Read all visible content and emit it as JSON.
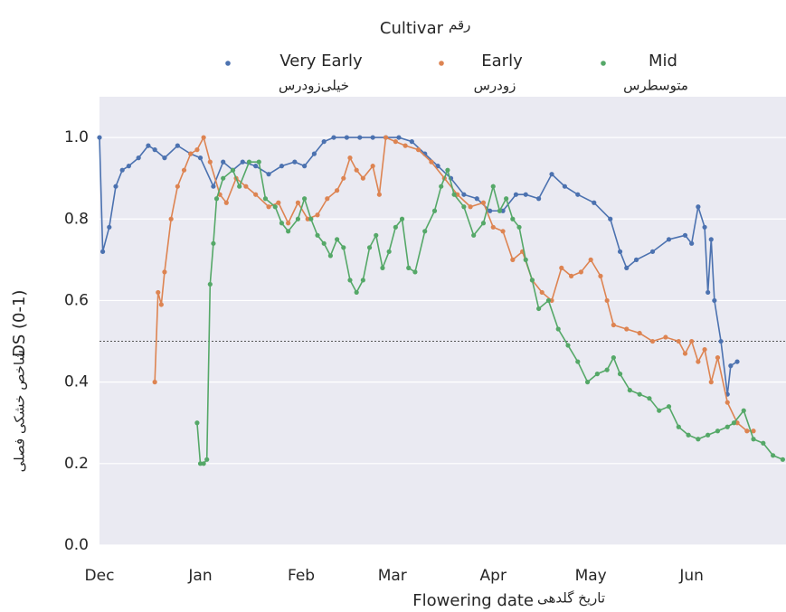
{
  "chart_data": {
    "type": "line",
    "legend_title": "Cultivar",
    "legend_title_fa": "رقم",
    "x_label": "Flowering date",
    "x_label_fa": "تاریخ گلدهی",
    "y_label": "DS (0-1)",
    "y_label_fa": "شاخص خشکی فصلی",
    "xlim": [
      0,
      211
    ],
    "ylim": [
      0,
      1.1
    ],
    "xticks": [
      {
        "value": 0,
        "label": "Dec"
      },
      {
        "value": 31,
        "label": "Jan"
      },
      {
        "value": 62,
        "label": "Feb"
      },
      {
        "value": 90,
        "label": "Mar"
      },
      {
        "value": 121,
        "label": "Apr"
      },
      {
        "value": 151,
        "label": "May"
      },
      {
        "value": 182,
        "label": "Jun"
      }
    ],
    "yticks": [
      {
        "value": 0,
        "label": "0.0"
      },
      0.2,
      0.4,
      0.6,
      0.8,
      {
        "value": 1,
        "label": "1.0"
      }
    ],
    "grid": true,
    "hline": 0.5,
    "series": [
      {
        "name": "Very Early",
        "name_fa": "خیلی‌زودرس",
        "color": "#4c72b0",
        "x": [
          0,
          1,
          3,
          5,
          7,
          9,
          12,
          15,
          17,
          20,
          24,
          28,
          31,
          35,
          38,
          41,
          44,
          48,
          52,
          56,
          60,
          63,
          66,
          69,
          72,
          76,
          80,
          84,
          88,
          92,
          96,
          100,
          104,
          108,
          112,
          116,
          120,
          124,
          128,
          131,
          135,
          139,
          143,
          147,
          152,
          157,
          160,
          162,
          165,
          170,
          175,
          180,
          182,
          184,
          186,
          187,
          188,
          189,
          191,
          193,
          194,
          196
        ],
        "values": [
          1.0,
          0.72,
          0.78,
          0.88,
          0.92,
          0.93,
          0.95,
          0.98,
          0.97,
          0.95,
          0.98,
          0.96,
          0.95,
          0.88,
          0.94,
          0.92,
          0.94,
          0.93,
          0.91,
          0.93,
          0.94,
          0.93,
          0.96,
          0.99,
          1.0,
          1.0,
          1.0,
          1.0,
          1.0,
          1.0,
          0.99,
          0.96,
          0.93,
          0.9,
          0.86,
          0.85,
          0.82,
          0.82,
          0.86,
          0.86,
          0.85,
          0.91,
          0.88,
          0.86,
          0.84,
          0.8,
          0.72,
          0.68,
          0.7,
          0.72,
          0.75,
          0.76,
          0.74,
          0.83,
          0.78,
          0.62,
          0.75,
          0.6,
          0.5,
          0.37,
          0.44,
          0.45
        ]
      },
      {
        "name": "Early",
        "name_fa": "زودرس",
        "color": "#dd8452",
        "x": [
          17,
          18,
          19,
          20,
          22,
          24,
          26,
          28,
          30,
          32,
          34,
          37,
          39,
          42,
          45,
          48,
          52,
          55,
          58,
          61,
          64,
          67,
          70,
          73,
          75,
          77,
          79,
          81,
          84,
          86,
          88,
          91,
          94,
          98,
          102,
          106,
          110,
          114,
          118,
          121,
          124,
          127,
          130,
          133,
          136,
          139,
          142,
          145,
          148,
          151,
          154,
          156,
          158,
          162,
          166,
          170,
          174,
          178,
          180,
          182,
          184,
          186,
          188,
          190,
          193,
          196,
          199,
          201
        ],
        "values": [
          0.4,
          0.62,
          0.59,
          0.67,
          0.8,
          0.88,
          0.92,
          0.96,
          0.97,
          1.0,
          0.94,
          0.86,
          0.84,
          0.9,
          0.88,
          0.86,
          0.83,
          0.84,
          0.79,
          0.84,
          0.8,
          0.81,
          0.85,
          0.87,
          0.9,
          0.95,
          0.92,
          0.9,
          0.93,
          0.86,
          1.0,
          0.99,
          0.98,
          0.97,
          0.94,
          0.9,
          0.86,
          0.83,
          0.84,
          0.78,
          0.77,
          0.7,
          0.72,
          0.65,
          0.62,
          0.6,
          0.68,
          0.66,
          0.67,
          0.7,
          0.66,
          0.6,
          0.54,
          0.53,
          0.52,
          0.5,
          0.51,
          0.5,
          0.47,
          0.5,
          0.45,
          0.48,
          0.4,
          0.46,
          0.35,
          0.3,
          0.28,
          0.28
        ]
      },
      {
        "name": "Mid",
        "name_fa": "متوسطرس",
        "color": "#55a868",
        "x": [
          30,
          31,
          32,
          33,
          34,
          35,
          36,
          38,
          41,
          43,
          46,
          49,
          51,
          54,
          56,
          58,
          61,
          63,
          65,
          67,
          69,
          71,
          73,
          75,
          77,
          79,
          81,
          83,
          85,
          87,
          89,
          91,
          93,
          95,
          97,
          100,
          103,
          105,
          107,
          109,
          112,
          115,
          118,
          121,
          123,
          125,
          127,
          129,
          131,
          133,
          135,
          138,
          141,
          144,
          147,
          150,
          153,
          156,
          158,
          160,
          163,
          166,
          169,
          172,
          175,
          178,
          181,
          184,
          187,
          190,
          193,
          195,
          198,
          201,
          204,
          207,
          210
        ],
        "values": [
          0.3,
          0.2,
          0.2,
          0.21,
          0.64,
          0.74,
          0.85,
          0.9,
          0.92,
          0.88,
          0.94,
          0.94,
          0.85,
          0.83,
          0.79,
          0.77,
          0.8,
          0.85,
          0.8,
          0.76,
          0.74,
          0.71,
          0.75,
          0.73,
          0.65,
          0.62,
          0.65,
          0.73,
          0.76,
          0.68,
          0.72,
          0.78,
          0.8,
          0.68,
          0.67,
          0.77,
          0.82,
          0.88,
          0.92,
          0.86,
          0.83,
          0.76,
          0.79,
          0.88,
          0.82,
          0.85,
          0.8,
          0.78,
          0.7,
          0.65,
          0.58,
          0.6,
          0.53,
          0.49,
          0.45,
          0.4,
          0.42,
          0.43,
          0.46,
          0.42,
          0.38,
          0.37,
          0.36,
          0.33,
          0.34,
          0.29,
          0.27,
          0.26,
          0.27,
          0.28,
          0.29,
          0.3,
          0.33,
          0.26,
          0.25,
          0.22,
          0.21
        ]
      }
    ]
  }
}
